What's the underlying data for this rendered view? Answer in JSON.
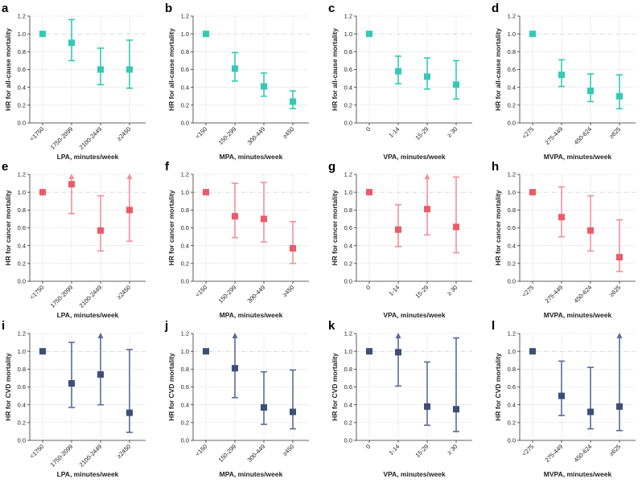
{
  "figure": {
    "colors": {
      "all_cause": "#34c9b5",
      "cancer": "#ec5a66",
      "cvd": "#465c8c",
      "ci_cancer": "#f2919a",
      "ci_cvd": "#5a6d98"
    }
  },
  "chart_data": [
    {
      "panel": "a",
      "type": "scatter",
      "series_color": "#34c9b5",
      "ylabel": "HR for all-cause mortality",
      "xlabel": "LPA, minutes/week",
      "ylim": [
        0,
        1.2
      ],
      "yticks": [
        "0.0",
        "0.2",
        "0.4",
        "0.6",
        "0.8",
        "1.0",
        "1.2"
      ],
      "categories": [
        "<1750",
        "1750-2099",
        "2100-2449",
        "≥2450"
      ],
      "hr": [
        1.0,
        0.9,
        0.6,
        0.6
      ],
      "ci_low": [
        null,
        0.7,
        0.43,
        0.39
      ],
      "ci_high": [
        null,
        1.16,
        0.84,
        0.93
      ],
      "arrow": [
        false,
        false,
        false,
        false
      ],
      "reference_line": 1.0
    },
    {
      "panel": "b",
      "type": "scatter",
      "series_color": "#34c9b5",
      "ylabel": "HR for all-cause mortality",
      "xlabel": "MPA, minutes/week",
      "ylim": [
        0,
        1.2
      ],
      "yticks": [
        "0.0",
        "0.2",
        "0.4",
        "0.6",
        "0.8",
        "1.0",
        "1.2"
      ],
      "categories": [
        "<150",
        "150-299",
        "300-449",
        "≥450"
      ],
      "hr": [
        1.0,
        0.61,
        0.41,
        0.24
      ],
      "ci_low": [
        null,
        0.47,
        0.3,
        0.16
      ],
      "ci_high": [
        null,
        0.79,
        0.56,
        0.36
      ],
      "arrow": [
        false,
        false,
        false,
        false
      ],
      "reference_line": 1.0
    },
    {
      "panel": "c",
      "type": "scatter",
      "series_color": "#34c9b5",
      "ylabel": "HR for all-cause mortality",
      "xlabel": "VPA, minutes/week",
      "ylim": [
        0,
        1.2
      ],
      "yticks": [
        "0.0",
        "0.2",
        "0.4",
        "0.6",
        "0.8",
        "1.0",
        "1.2"
      ],
      "categories": [
        "0",
        "1-14",
        "15-29",
        "≥ 30"
      ],
      "hr": [
        1.0,
        0.58,
        0.52,
        0.43
      ],
      "ci_low": [
        null,
        0.44,
        0.38,
        0.27
      ],
      "ci_high": [
        null,
        0.75,
        0.73,
        0.7
      ],
      "arrow": [
        false,
        false,
        false,
        false
      ],
      "reference_line": 1.0
    },
    {
      "panel": "d",
      "type": "scatter",
      "series_color": "#34c9b5",
      "ylabel": "HR for all-cause mortality",
      "xlabel": "MVPA, minutes/week",
      "ylim": [
        0,
        1.2
      ],
      "yticks": [
        "0.0",
        "0.2",
        "0.4",
        "0.6",
        "0.8",
        "1.0",
        "1.2"
      ],
      "categories": [
        "<275",
        "275-449",
        "450-624",
        "≥625"
      ],
      "hr": [
        1.0,
        0.54,
        0.36,
        0.3
      ],
      "ci_low": [
        null,
        0.41,
        0.24,
        0.16
      ],
      "ci_high": [
        null,
        0.71,
        0.55,
        0.54
      ],
      "arrow": [
        false,
        false,
        false,
        false
      ],
      "reference_line": 1.0
    },
    {
      "panel": "e",
      "type": "scatter",
      "series_color": "#ec5a66",
      "ci_color": "#f2919a",
      "ylabel": "HR for cancer mortality",
      "xlabel": "LPA, minutes/week",
      "ylim": [
        0,
        1.2
      ],
      "yticks": [
        "0.0",
        "0.2",
        "0.4",
        "0.6",
        "0.8",
        "1.0",
        "1.2"
      ],
      "categories": [
        "<1750",
        "1750-2099",
        "2100-2449",
        "≥2450"
      ],
      "hr": [
        1.0,
        1.09,
        0.57,
        0.8
      ],
      "ci_low": [
        null,
        0.76,
        0.34,
        0.45
      ],
      "ci_high": [
        null,
        1.2,
        0.96,
        1.2
      ],
      "arrow": [
        false,
        true,
        false,
        true
      ],
      "reference_line": 1.0
    },
    {
      "panel": "f",
      "type": "scatter",
      "series_color": "#ec5a66",
      "ci_color": "#f2919a",
      "ylabel": "HR for cancer mortality",
      "xlabel": "MPA, minutes/week",
      "ylim": [
        0,
        1.2
      ],
      "yticks": [
        "0.0",
        "0.2",
        "0.4",
        "0.6",
        "0.8",
        "1.0",
        "1.2"
      ],
      "categories": [
        "<150",
        "150-299",
        "300-449",
        "≥450"
      ],
      "hr": [
        1.0,
        0.73,
        0.7,
        0.37
      ],
      "ci_low": [
        null,
        0.49,
        0.44,
        0.2
      ],
      "ci_high": [
        null,
        1.1,
        1.11,
        0.67
      ],
      "arrow": [
        false,
        false,
        false,
        false
      ],
      "reference_line": 1.0
    },
    {
      "panel": "g",
      "type": "scatter",
      "series_color": "#ec5a66",
      "ci_color": "#f2919a",
      "ylabel": "HR for cancer mortality",
      "xlabel": "VPA, minutes/week",
      "ylim": [
        0,
        1.2
      ],
      "yticks": [
        "0.0",
        "0.2",
        "0.4",
        "0.6",
        "0.8",
        "1.0",
        "1.2"
      ],
      "categories": [
        "0",
        "1-14",
        "15-29",
        "≥ 30"
      ],
      "hr": [
        1.0,
        0.58,
        0.81,
        0.61
      ],
      "ci_low": [
        null,
        0.39,
        0.52,
        0.32
      ],
      "ci_high": [
        null,
        0.86,
        1.2,
        1.17
      ],
      "arrow": [
        false,
        false,
        true,
        false
      ],
      "reference_line": 1.0
    },
    {
      "panel": "h",
      "type": "scatter",
      "series_color": "#ec5a66",
      "ci_color": "#f2919a",
      "ylabel": "HR for cancer mortality",
      "xlabel": "MVPA, minutes/week",
      "ylim": [
        0,
        1.2
      ],
      "yticks": [
        "0.0",
        "0.2",
        "0.4",
        "0.6",
        "0.8",
        "1.0",
        "1.2"
      ],
      "categories": [
        "<275",
        "275-449",
        "450-624",
        "≥625"
      ],
      "hr": [
        1.0,
        0.72,
        0.57,
        0.27
      ],
      "ci_low": [
        null,
        0.5,
        0.34,
        0.11
      ],
      "ci_high": [
        null,
        1.06,
        0.96,
        0.69
      ],
      "arrow": [
        false,
        false,
        false,
        false
      ],
      "reference_line": 1.0
    },
    {
      "panel": "i",
      "type": "scatter",
      "series_color": "#3d4f78",
      "ci_color": "#5a6d98",
      "ylabel": "HR for CVD mortality",
      "xlabel": "LPA, minutes/week",
      "ylim": [
        0,
        1.2
      ],
      "yticks": [
        "0.0",
        "0.2",
        "0.4",
        "0.6",
        "0.8",
        "1.0",
        "1.2"
      ],
      "categories": [
        "<1750",
        "1750-2099",
        "2100-2449",
        "≥2450"
      ],
      "hr": [
        1.0,
        0.64,
        0.74,
        0.31
      ],
      "ci_low": [
        null,
        0.37,
        0.4,
        0.09
      ],
      "ci_high": [
        null,
        1.1,
        1.2,
        1.02
      ],
      "arrow": [
        false,
        false,
        true,
        false
      ],
      "reference_line": 1.0
    },
    {
      "panel": "j",
      "type": "scatter",
      "series_color": "#3d4f78",
      "ci_color": "#5a6d98",
      "ylabel": "HR for CVD mortality",
      "xlabel": "MPA, minutes/week",
      "ylim": [
        0,
        1.2
      ],
      "yticks": [
        "0.0",
        "0.2",
        "0.4",
        "0.6",
        "0.8",
        "1.0",
        "1.2"
      ],
      "categories": [
        "<150",
        "150-299",
        "300-449",
        "≥450"
      ],
      "hr": [
        1.0,
        0.81,
        0.37,
        0.32
      ],
      "ci_low": [
        null,
        0.48,
        0.18,
        0.13
      ],
      "ci_high": [
        null,
        1.2,
        0.77,
        0.79
      ],
      "arrow": [
        false,
        true,
        false,
        false
      ],
      "reference_line": 1.0
    },
    {
      "panel": "k",
      "type": "scatter",
      "series_color": "#3d4f78",
      "ci_color": "#5a6d98",
      "ylabel": "HR for CVD mortality",
      "xlabel": "VPA, minutes/week",
      "ylim": [
        0,
        1.2
      ],
      "yticks": [
        "0.0",
        "0.2",
        "0.4",
        "0.6",
        "0.8",
        "1.0",
        "1.2"
      ],
      "categories": [
        "0",
        "1-14",
        "15-29",
        "≥ 30"
      ],
      "hr": [
        1.0,
        0.99,
        0.38,
        0.35
      ],
      "ci_low": [
        null,
        0.61,
        0.17,
        0.1
      ],
      "ci_high": [
        null,
        1.2,
        0.88,
        1.15
      ],
      "arrow": [
        false,
        true,
        false,
        false
      ],
      "reference_line": 1.0
    },
    {
      "panel": "l",
      "type": "scatter",
      "series_color": "#3d4f78",
      "ci_color": "#5a6d98",
      "ylabel": "HR for CVD mortality",
      "xlabel": "MVPA, minutes/week",
      "ylim": [
        0,
        1.2
      ],
      "yticks": [
        "0.0",
        "0.2",
        "0.4",
        "0.6",
        "0.8",
        "1.0",
        "1.2"
      ],
      "categories": [
        "<275",
        "275-449",
        "450-624",
        "≥625"
      ],
      "hr": [
        1.0,
        0.5,
        0.32,
        0.38
      ],
      "ci_low": [
        null,
        0.28,
        0.13,
        0.11
      ],
      "ci_high": [
        null,
        0.89,
        0.82,
        1.2
      ],
      "arrow": [
        false,
        false,
        false,
        true
      ],
      "reference_line": 1.0
    }
  ]
}
